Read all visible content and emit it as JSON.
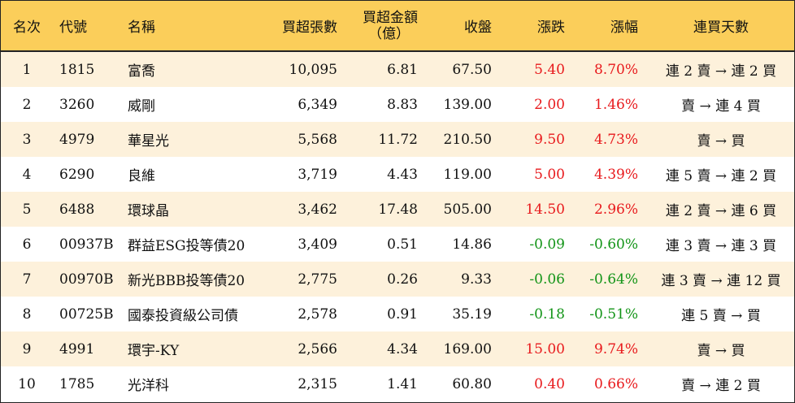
{
  "headers": {
    "rank": "名次",
    "code": "代號",
    "name": "名稱",
    "volume": "買超張數",
    "amount_line1": "買超金額",
    "amount_line2": "（億）",
    "close": "收盤",
    "change": "漲跌",
    "pct": "漲幅",
    "days": "連買天數"
  },
  "colors": {
    "header_bg": "#fbce5a",
    "stripe_bg": "#fdf1db",
    "up": "#e8191c",
    "down": "#129417"
  },
  "rows": [
    {
      "rank": "1",
      "code": "1815",
      "name": "富喬",
      "volume": "10,095",
      "amount": "6.81",
      "close": "67.50",
      "change": "5.40",
      "pct": "8.70%",
      "days": "連 2 賣 → 連 2 買",
      "dir": "up"
    },
    {
      "rank": "2",
      "code": "3260",
      "name": "威剛",
      "volume": "6,349",
      "amount": "8.83",
      "close": "139.00",
      "change": "2.00",
      "pct": "1.46%",
      "days": "賣 → 連 4 買",
      "dir": "up"
    },
    {
      "rank": "3",
      "code": "4979",
      "name": "華星光",
      "volume": "5,568",
      "amount": "11.72",
      "close": "210.50",
      "change": "9.50",
      "pct": "4.73%",
      "days": "賣 → 買",
      "dir": "up"
    },
    {
      "rank": "4",
      "code": "6290",
      "name": "良維",
      "volume": "3,719",
      "amount": "4.43",
      "close": "119.00",
      "change": "5.00",
      "pct": "4.39%",
      "days": "連 5 賣 → 連 2 買",
      "dir": "up"
    },
    {
      "rank": "5",
      "code": "6488",
      "name": "環球晶",
      "volume": "3,462",
      "amount": "17.48",
      "close": "505.00",
      "change": "14.50",
      "pct": "2.96%",
      "days": "連 2 賣 → 連 6 買",
      "dir": "up"
    },
    {
      "rank": "6",
      "code": "00937B",
      "name": "群益ESG投等債20",
      "volume": "3,409",
      "amount": "0.51",
      "close": "14.86",
      "change": "-0.09",
      "pct": "-0.60%",
      "days": "連 3 賣 → 連 3 買",
      "dir": "down"
    },
    {
      "rank": "7",
      "code": "00970B",
      "name": "新光BBB投等債20",
      "volume": "2,775",
      "amount": "0.26",
      "close": "9.33",
      "change": "-0.06",
      "pct": "-0.64%",
      "days": "連 3 賣 → 連 12 買",
      "dir": "down"
    },
    {
      "rank": "8",
      "code": "00725B",
      "name": "國泰投資級公司債",
      "volume": "2,578",
      "amount": "0.91",
      "close": "35.19",
      "change": "-0.18",
      "pct": "-0.51%",
      "days": "連 5 賣 → 買",
      "dir": "down"
    },
    {
      "rank": "9",
      "code": "4991",
      "name": "環宇-KY",
      "volume": "2,566",
      "amount": "4.34",
      "close": "169.00",
      "change": "15.00",
      "pct": "9.74%",
      "days": "賣 → 買",
      "dir": "up"
    },
    {
      "rank": "10",
      "code": "1785",
      "name": "光洋科",
      "volume": "2,315",
      "amount": "1.41",
      "close": "60.80",
      "change": "0.40",
      "pct": "0.66%",
      "days": "賣 → 連 2 買",
      "dir": "up"
    }
  ]
}
